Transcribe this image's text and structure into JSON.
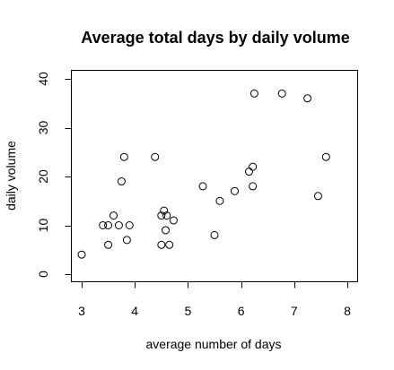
{
  "chart_data": {
    "type": "scatter",
    "title": "Average total days by daily volume",
    "xlabel": "average number of days",
    "ylabel": "daily volume",
    "xlim": [
      3,
      8
    ],
    "ylim": [
      0,
      40
    ],
    "xticks": [
      3,
      4,
      5,
      6,
      7,
      8
    ],
    "yticks": [
      0,
      10,
      20,
      30,
      40
    ],
    "grid": false,
    "legend": "none",
    "series": [
      {
        "marker": "open-circle",
        "color": "#000000",
        "points": [
          {
            "x": 3.0,
            "y": 4
          },
          {
            "x": 3.4,
            "y": 10
          },
          {
            "x": 3.5,
            "y": 6
          },
          {
            "x": 3.5,
            "y": 10
          },
          {
            "x": 3.6,
            "y": 12
          },
          {
            "x": 3.7,
            "y": 10
          },
          {
            "x": 3.75,
            "y": 19
          },
          {
            "x": 3.8,
            "y": 24
          },
          {
            "x": 3.85,
            "y": 7
          },
          {
            "x": 3.9,
            "y": 10
          },
          {
            "x": 4.38,
            "y": 24
          },
          {
            "x": 4.5,
            "y": 6
          },
          {
            "x": 4.5,
            "y": 12
          },
          {
            "x": 4.55,
            "y": 13
          },
          {
            "x": 4.58,
            "y": 9
          },
          {
            "x": 4.6,
            "y": 12
          },
          {
            "x": 4.65,
            "y": 6
          },
          {
            "x": 4.73,
            "y": 11
          },
          {
            "x": 5.28,
            "y": 18
          },
          {
            "x": 5.5,
            "y": 8
          },
          {
            "x": 5.6,
            "y": 15
          },
          {
            "x": 5.88,
            "y": 17
          },
          {
            "x": 6.15,
            "y": 21
          },
          {
            "x": 6.22,
            "y": 18
          },
          {
            "x": 6.22,
            "y": 22
          },
          {
            "x": 6.25,
            "y": 37
          },
          {
            "x": 6.77,
            "y": 37
          },
          {
            "x": 7.25,
            "y": 36
          },
          {
            "x": 7.45,
            "y": 16
          },
          {
            "x": 7.6,
            "y": 24
          }
        ]
      }
    ]
  }
}
